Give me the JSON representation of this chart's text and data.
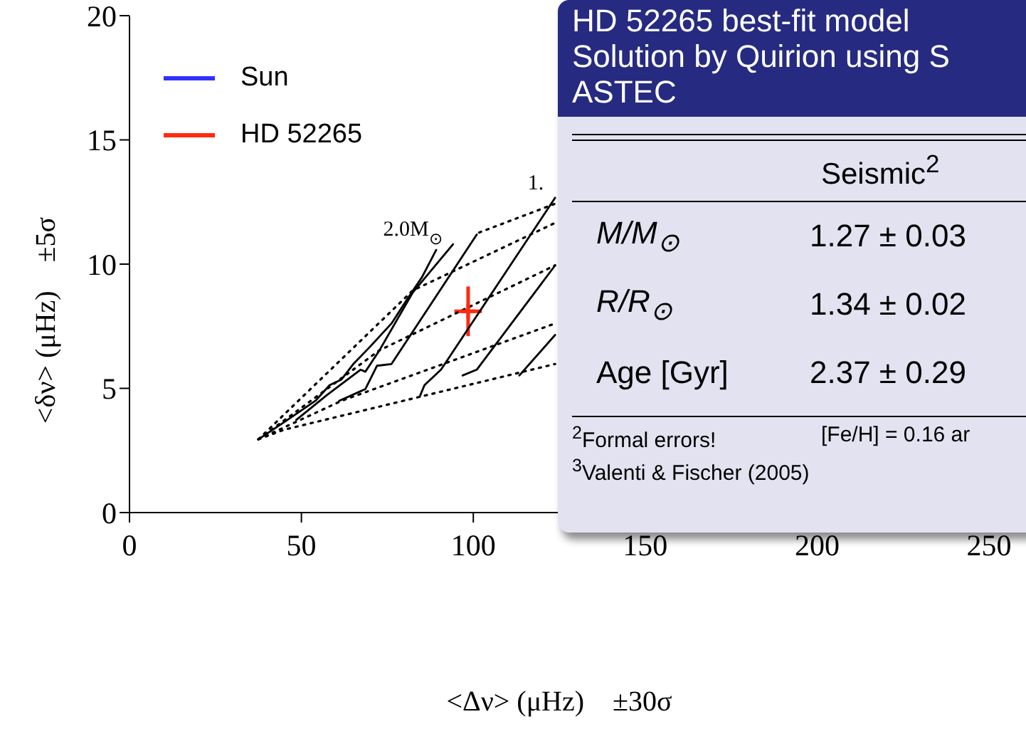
{
  "chart_data": {
    "type": "line",
    "xlabel": "<Δν> (μHz)    ±30σ",
    "ylabel": "<δν> (μHz)    ±5σ",
    "xlim": [
      0,
      250
    ],
    "xticks": [
      0,
      50,
      100,
      150,
      200,
      250
    ],
    "ylim": [
      0,
      20
    ],
    "yticks": [
      0,
      5,
      10,
      15,
      20
    ],
    "grid": false,
    "legend": "top left",
    "marker": "none",
    "series": [
      {
        "name": "Sun",
        "color": "#3030ff"
      },
      {
        "name": "HD 52265",
        "color": "#ff2a0f",
        "type": "scatter",
        "marker": "cross",
        "x": [
          98.5
        ],
        "values": [
          8.1
        ],
        "errors": [
          1.0
        ],
        "xerrors": [
          4
        ]
      },
      {
        "color": "#000000",
        "line_style": "solid",
        "x": [
          37.5,
          45.1,
          54.1,
          58.2,
          61.7,
          65.1,
          70,
          76.2,
          80.9,
          85.1,
          89.2
        ],
        "values": [
          2.95,
          3.65,
          4.5,
          5.13,
          5.36,
          5.98,
          6.68,
          7.61,
          8.62,
          9.48,
          10.57
        ]
      },
      {
        "color": "#000000",
        "line_style": "solid",
        "x": [
          48.5,
          57.5,
          67.2,
          68.6,
          72.7,
          82.4,
          94.1
        ],
        "values": [
          3.73,
          4.74,
          5.75,
          5.67,
          6.53,
          8.86,
          10.8
        ]
      },
      {
        "color": "#000000",
        "line_style": "solid",
        "x": [
          61,
          68.6,
          72,
          76.2,
          101
        ],
        "values": [
          4.5,
          4.97,
          5.91,
          5.98,
          11.19
        ]
      },
      {
        "color": "#000000",
        "line_style": "solid",
        "x": [
          84.4,
          85.8,
          90.6,
          123.8
        ],
        "values": [
          4.66,
          5.13,
          5.75,
          12.67
        ]
      },
      {
        "color": "#000000",
        "line_style": "solid",
        "x": [
          96.9,
          101,
          123.8
        ],
        "values": [
          5.52,
          5.75,
          9.95
        ]
      },
      {
        "color": "#000000",
        "line_style": "solid",
        "x": [
          113.4,
          123.8
        ],
        "values": [
          5.52,
          7.15
        ]
      },
      {
        "color": "#000000",
        "line_style": "dotted",
        "x": [
          101.7,
          123.8
        ],
        "values": [
          11.27,
          12.43
        ]
      },
      {
        "color": "#000000",
        "line_style": "dotted",
        "x": [
          37.5,
          82.4,
          123.8
        ],
        "values": [
          2.95,
          8.94,
          11.66
        ]
      },
      {
        "color": "#000000",
        "line_style": "dotted",
        "x": [
          37.5,
          72.7,
          123.8
        ],
        "values": [
          2.95,
          6.53,
          9.95
        ]
      },
      {
        "color": "#000000",
        "line_style": "dotted",
        "x": [
          37.5,
          61.7,
          123.8
        ],
        "values": [
          2.95,
          4.5,
          7.61
        ]
      },
      {
        "color": "#000000",
        "line_style": "dotted",
        "x": [
          37.5,
          45.1,
          123.8
        ],
        "values": [
          2.95,
          3.34,
          5.98
        ]
      }
    ],
    "annotations": [
      {
        "text": "2.0M$_{⊙}$",
        "x": 94.1,
        "y": 10.8
      },
      {
        "text": "1.",
        "x": 123.8,
        "y": 12.67
      },
      "HD 52265 best-fit model",
      "Solution by Quirion using S",
      "ASTEC",
      "Seismic$^{2}$",
      "M/M$_{⊙}$",
      "1.27 ± 0.03",
      "R/R$_{⊙}$",
      "1.34 ± 0.02",
      "Age [Gyr]",
      "2.37 ± 0.29",
      "$^{2}$Formal errors!",
      "[Fe/H] = 0.16 ar",
      "$^{3}$Valenti & Fischer (2005)"
    ]
  }
}
